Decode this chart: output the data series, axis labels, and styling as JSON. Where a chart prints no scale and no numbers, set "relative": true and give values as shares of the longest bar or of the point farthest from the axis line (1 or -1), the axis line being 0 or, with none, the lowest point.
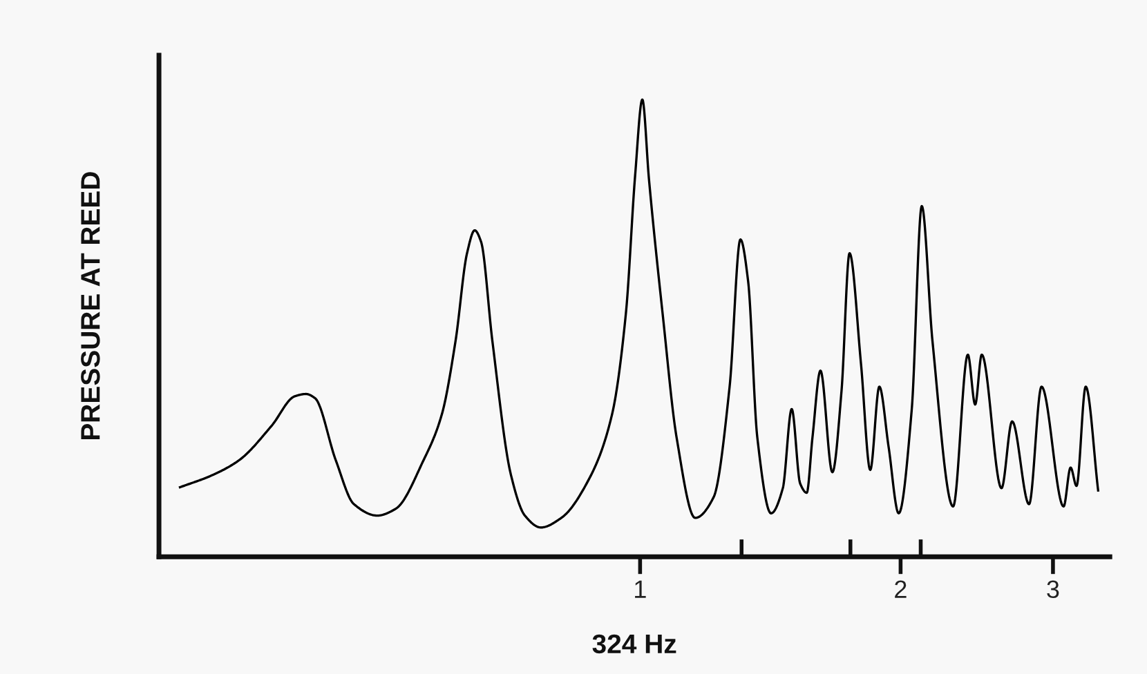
{
  "chart_data": {
    "type": "line",
    "xlabel": "324 Hz",
    "ylabel": "PRESSURE AT REED",
    "relative": true,
    "log": "x",
    "xlim": [
      0.278,
      3.49
    ],
    "xticks": [
      1,
      {
        "value": 1.31,
        "label": null
      },
      {
        "value": 1.75,
        "label": null
      },
      2,
      {
        "value": 2.11,
        "label": null
      },
      3
    ],
    "series": [
      {
        "color": "#000000",
        "x": [
          0.294,
          0.32,
          0.344,
          0.375,
          0.399,
          0.411,
          0.421,
          0.445,
          0.467,
          0.497,
          0.522,
          0.562,
          0.59,
          0.612,
          0.631,
          0.644,
          0.655,
          0.675,
          0.709,
          0.736,
          0.768,
          0.811,
          0.873,
          0.928,
          0.963,
          0.987,
          1.006,
          1.024,
          1.063,
          1.102,
          1.158,
          1.216,
          1.269,
          1.306,
          1.333,
          1.366,
          1.417,
          1.462,
          1.497,
          1.531,
          1.558,
          1.582,
          1.616,
          1.668,
          1.709,
          1.746,
          1.8,
          1.845,
          1.89,
          1.937,
          1.99,
          2.06,
          2.116,
          2.177,
          2.3,
          2.392,
          2.439,
          2.482,
          2.616,
          2.691,
          2.815,
          2.91,
          3.086,
          3.144,
          3.194,
          3.273,
          3.383
        ],
        "values": [
          0.152,
          0.178,
          0.211,
          0.286,
          0.351,
          0.356,
          0.347,
          0.211,
          0.115,
          0.09,
          0.105,
          0.211,
          0.311,
          0.472,
          0.664,
          0.714,
          0.689,
          0.472,
          0.18,
          0.09,
          0.064,
          0.085,
          0.17,
          0.311,
          0.533,
          0.835,
          1.0,
          0.825,
          0.523,
          0.261,
          0.085,
          0.13,
          0.372,
          0.694,
          0.603,
          0.261,
          0.095,
          0.15,
          0.323,
          0.16,
          0.14,
          0.261,
          0.407,
          0.185,
          0.362,
          0.664,
          0.422,
          0.19,
          0.372,
          0.241,
          0.095,
          0.321,
          0.767,
          0.472,
          0.11,
          0.442,
          0.333,
          0.442,
          0.15,
          0.296,
          0.115,
          0.372,
          0.11,
          0.195,
          0.155,
          0.372,
          0.145
        ]
      }
    ]
  }
}
